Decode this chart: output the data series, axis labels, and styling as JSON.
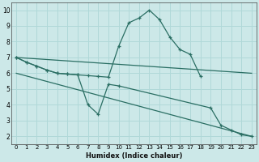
{
  "xlabel": "Humidex (Indice chaleur)",
  "xlim": [
    -0.5,
    23.5
  ],
  "ylim": [
    1.5,
    10.5
  ],
  "xticks": [
    0,
    1,
    2,
    3,
    4,
    5,
    6,
    7,
    8,
    9,
    10,
    11,
    12,
    13,
    14,
    15,
    16,
    17,
    18,
    19,
    20,
    21,
    22,
    23
  ],
  "yticks": [
    2,
    3,
    4,
    5,
    6,
    7,
    8,
    9,
    10
  ],
  "bg_color": "#cce8e8",
  "line_color": "#2a6e63",
  "grid_color": "#b0d8d8",
  "line1_x": [
    0,
    1,
    2,
    3,
    4,
    5,
    6,
    7,
    8,
    9,
    10,
    11,
    12,
    13,
    14,
    15,
    16,
    17,
    18
  ],
  "line1_y": [
    7.0,
    6.7,
    6.45,
    6.2,
    6.0,
    5.95,
    5.9,
    5.85,
    5.8,
    5.75,
    7.7,
    9.2,
    9.5,
    10.0,
    9.4,
    8.3,
    7.5,
    7.2,
    5.8
  ],
  "line2_x": [
    0,
    1,
    2,
    3,
    4,
    5,
    6,
    7,
    8,
    9,
    10,
    19,
    20,
    21,
    22,
    23
  ],
  "line2_y": [
    7.0,
    6.7,
    6.45,
    6.2,
    6.0,
    5.95,
    5.9,
    4.0,
    3.4,
    5.3,
    5.2,
    3.8,
    2.7,
    2.4,
    2.1,
    2.0
  ],
  "line3_x": [
    0,
    23
  ],
  "line3_y": [
    7.0,
    6.0
  ],
  "line4_x": [
    0,
    23
  ],
  "line4_y": [
    6.0,
    2.0
  ]
}
